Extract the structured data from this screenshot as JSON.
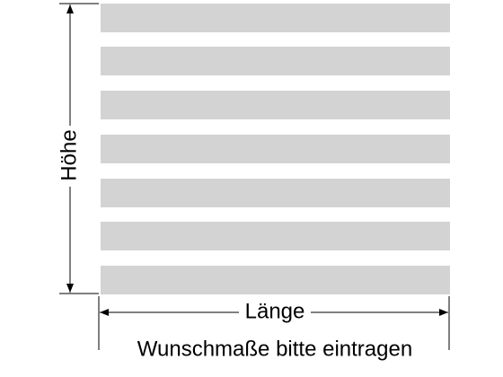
{
  "labels": {
    "height": "Höhe",
    "length": "Länge",
    "note": "Wunschmaße bitte eintragen"
  }
}
